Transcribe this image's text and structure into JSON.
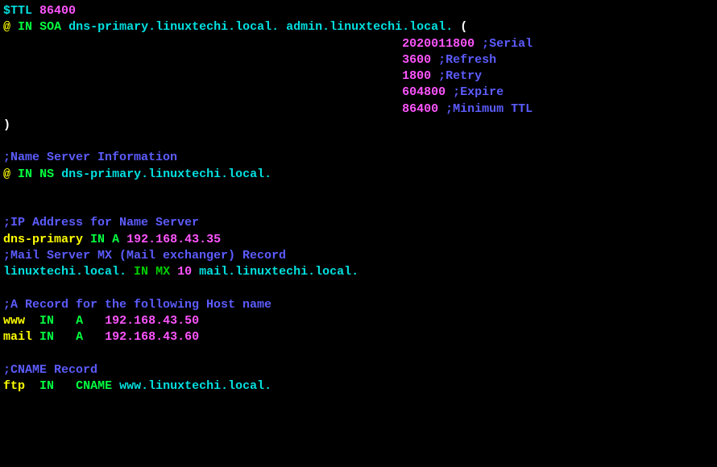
{
  "colors": {
    "background": "#000000",
    "magenta": "#ff55ff",
    "cyan": "#00e0e0",
    "yellow": "#ffff00",
    "green": "#00ff40",
    "white": "#ffffff",
    "blue": "#5c5cff",
    "dgreen": "#00d000"
  },
  "ttl": {
    "directive": "$TTL",
    "value": "86400"
  },
  "soa": {
    "origin": "@",
    "class": "IN",
    "type": "SOA",
    "primary": "dns-primary.linuxtechi.local.",
    "admin": "admin.linuxtechi.local.",
    "open": "(",
    "serial": {
      "value": "2020011800",
      "comment": ";Serial"
    },
    "refresh": {
      "value": "3600",
      "comment": ";Refresh"
    },
    "retry": {
      "value": "1800",
      "comment": ";Retry"
    },
    "expire": {
      "value": "604800",
      "comment": ";Expire"
    },
    "minttl": {
      "value": "86400",
      "comment": ";Minimum TTL"
    },
    "close": ")"
  },
  "comments": {
    "ns": ";Name Server Information",
    "ip": ";IP Address for Name Server",
    "mx": ";Mail Server MX (Mail exchanger) Record",
    "arec": ";A Record for the following Host name",
    "cname": ";CNAME Record"
  },
  "ns": {
    "origin": "@",
    "class": "IN",
    "type": "NS",
    "target": "dns-primary.linuxtechi.local."
  },
  "a_primary": {
    "name": "dns-primary",
    "class": "IN",
    "type": "A",
    "ip": "192.168.43.35"
  },
  "mx": {
    "name": "linuxtechi.local.",
    "class": "IN",
    "type": "MX",
    "priority": "10",
    "target": "mail.linuxtechi.local."
  },
  "a_www": {
    "name": "www ",
    "class": "IN",
    "type": "A",
    "ip": "192.168.43.50"
  },
  "a_mail": {
    "name": "mail",
    "class": "IN",
    "type": "A",
    "ip": "192.168.43.60"
  },
  "cname": {
    "name": "ftp",
    "class": "IN",
    "type": "CNAME",
    "target": "www.linuxtechi.local."
  }
}
